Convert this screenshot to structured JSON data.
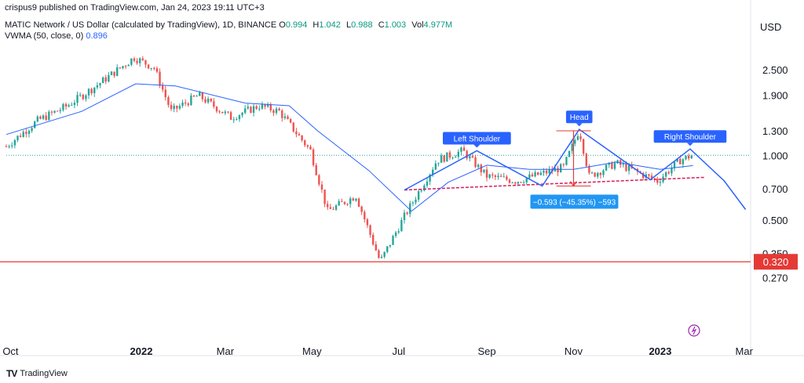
{
  "published": "crispus9 published on TradingView.com, Jan 24, 2023 19:11 UTC+3",
  "symbol": "MATIC Network / US Dollar (calculated by TradingView), 1D, BINANCE",
  "ohlc": [
    {
      "label": "O",
      "value": "0.994"
    },
    {
      "label": "H",
      "value": "1.042"
    },
    {
      "label": "L",
      "value": "0.988"
    },
    {
      "label": "C",
      "value": "1.003"
    },
    {
      "label": "Vol",
      "value": "4.977M"
    }
  ],
  "indicator": {
    "label": "VWMA (50, close, 0)",
    "value": "0.896"
  },
  "currency": "USD",
  "footer": "TradingView",
  "colors": {
    "up": "#26a69a",
    "down": "#ef5350",
    "vwma": "#2962ff",
    "pattern": "#2962ff",
    "support": "#e53935",
    "neckline": "#d81b60"
  },
  "chart_data": {
    "type": "candlestick",
    "scale": "log",
    "x_ticks": [
      "Oct",
      "2022",
      "Mar",
      "May",
      "Jul",
      "Sep",
      "Nov",
      "2023",
      "Mar"
    ],
    "y_ticks": [
      "2.500",
      "1.900",
      "1.300",
      "1.000",
      "0.700",
      "0.500",
      "0.350",
      "0.270"
    ],
    "price_path": [
      {
        "date": "2021-09-28",
        "price": 1.1
      },
      {
        "date": "2021-10-20",
        "price": 1.45
      },
      {
        "date": "2021-11-10",
        "price": 1.7
      },
      {
        "date": "2021-11-30",
        "price": 2.1
      },
      {
        "date": "2021-12-27",
        "price": 2.85
      },
      {
        "date": "2022-01-10",
        "price": 2.55
      },
      {
        "date": "2022-01-22",
        "price": 1.6
      },
      {
        "date": "2022-02-10",
        "price": 1.9
      },
      {
        "date": "2022-03-05",
        "price": 1.5
      },
      {
        "date": "2022-03-25",
        "price": 1.7
      },
      {
        "date": "2022-04-08",
        "price": 1.6
      },
      {
        "date": "2022-04-30",
        "price": 1.05
      },
      {
        "date": "2022-05-12",
        "price": 0.55
      },
      {
        "date": "2022-06-01",
        "price": 0.65
      },
      {
        "date": "2022-06-18",
        "price": 0.32
      },
      {
        "date": "2022-07-05",
        "price": 0.52
      },
      {
        "date": "2022-07-28",
        "price": 0.95
      },
      {
        "date": "2022-08-15",
        "price": 1.05
      },
      {
        "date": "2022-09-01",
        "price": 0.8
      },
      {
        "date": "2022-09-22",
        "price": 0.76
      },
      {
        "date": "2022-10-25",
        "price": 0.88
      },
      {
        "date": "2022-11-05",
        "price": 1.32
      },
      {
        "date": "2022-11-12",
        "price": 0.8
      },
      {
        "date": "2022-12-01",
        "price": 0.92
      },
      {
        "date": "2022-12-30",
        "price": 0.76
      },
      {
        "date": "2023-01-15",
        "price": 0.95
      },
      {
        "date": "2023-01-24",
        "price": 1.003
      }
    ],
    "vwma": [
      {
        "date": "2021-09-28",
        "price": 1.25
      },
      {
        "date": "2021-11-20",
        "price": 1.6
      },
      {
        "date": "2021-12-28",
        "price": 2.15
      },
      {
        "date": "2022-01-25",
        "price": 2.1
      },
      {
        "date": "2022-03-15",
        "price": 1.75
      },
      {
        "date": "2022-04-15",
        "price": 1.7
      },
      {
        "date": "2022-05-05",
        "price": 1.3
      },
      {
        "date": "2022-06-10",
        "price": 0.85
      },
      {
        "date": "2022-07-10",
        "price": 0.55
      },
      {
        "date": "2022-08-05",
        "price": 0.75
      },
      {
        "date": "2022-09-01",
        "price": 0.9
      },
      {
        "date": "2022-10-01",
        "price": 0.86
      },
      {
        "date": "2022-11-01",
        "price": 0.86
      },
      {
        "date": "2022-12-01",
        "price": 0.93
      },
      {
        "date": "2023-01-01",
        "price": 0.86
      },
      {
        "date": "2023-01-24",
        "price": 0.896
      }
    ],
    "support": {
      "price": 0.32,
      "label": "0.320"
    },
    "dotted_level": 1.0,
    "neckline": [
      {
        "date": "2022-07-05",
        "price": 0.69
      },
      {
        "date": "2023-02-01",
        "price": 0.79
      }
    ],
    "pattern_line": [
      {
        "date": "2022-07-05",
        "price": 0.69
      },
      {
        "date": "2022-08-25",
        "price": 1.05
      },
      {
        "date": "2022-10-10",
        "price": 0.72
      },
      {
        "date": "2022-11-05",
        "price": 1.32
      },
      {
        "date": "2022-12-25",
        "price": 0.77
      },
      {
        "date": "2023-01-22",
        "price": 1.07
      },
      {
        "date": "2023-02-15",
        "price": 0.76
      },
      {
        "date": "2023-03-02",
        "price": 0.56
      }
    ],
    "annotations": [
      {
        "label": "Left Shoulder",
        "date": "2022-08-25",
        "price": 1.05
      },
      {
        "label": "Head",
        "date": "2022-11-05",
        "price": 1.32
      },
      {
        "label": "Right Shoulder",
        "date": "2023-01-22",
        "price": 1.07
      }
    ],
    "measure": {
      "date": "2022-11-01",
      "from": 1.3,
      "to": 0.72,
      "label": "−0.593 (−45.35%) −593"
    }
  }
}
